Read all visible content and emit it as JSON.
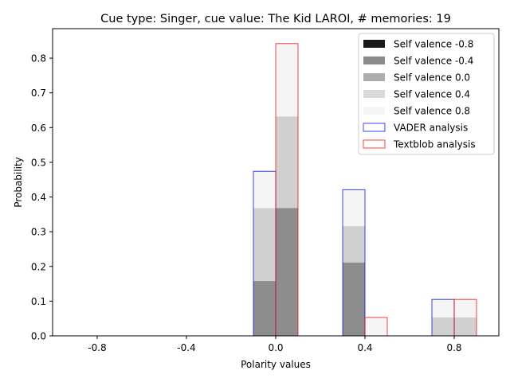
{
  "chart_data": {
    "type": "bar",
    "title": "Cue type: Singer, cue value: The Kid LAROI, # memories: 19",
    "xlabel": "Polarity values",
    "ylabel": "Probability",
    "x_ticks": [
      "-0.8",
      "-0.4",
      "0.0",
      "0.4",
      "0.8"
    ],
    "y_ticks": [
      "0.0",
      "0.1",
      "0.2",
      "0.3",
      "0.4",
      "0.5",
      "0.6",
      "0.7",
      "0.8"
    ],
    "xlim": [
      -1.0,
      1.0
    ],
    "ylim": [
      0,
      0.885
    ],
    "grid": false,
    "legend_position": "top-right",
    "self_valence_series": [
      {
        "name": "Self valence -0.8",
        "color": "#000000",
        "opacity": 0.9,
        "vader": [
          0,
          0,
          0,
          0,
          0
        ],
        "textblob": [
          0,
          0,
          0,
          0,
          0
        ]
      },
      {
        "name": "Self valence -0.4",
        "color": "#000000",
        "opacity": 0.45,
        "vader": [
          0,
          0,
          0,
          0,
          0
        ],
        "textblob": [
          0,
          0,
          0,
          0,
          0
        ]
      },
      {
        "name": "Self valence 0.0",
        "color": "#000000",
        "opacity": 0.32,
        "vader": [
          0,
          0,
          0.158,
          0.211,
          0
        ],
        "textblob": [
          0,
          0,
          0.368,
          0,
          0
        ]
      },
      {
        "name": "Self valence 0.4",
        "color": "#000000",
        "opacity": 0.15,
        "vader": [
          0,
          0,
          0.368,
          0.316,
          0.053
        ],
        "textblob": [
          0,
          0,
          0.632,
          0,
          0.053
        ]
      },
      {
        "name": "Self valence 0.8",
        "color": "#000000",
        "opacity": 0.04,
        "vader": [
          0,
          0,
          0.474,
          0.421,
          0.105
        ],
        "textblob": [
          0,
          0,
          0.842,
          0.053,
          0.105
        ]
      }
    ],
    "analysis_series": [
      {
        "name": "VADER analysis",
        "color": "#0000ff",
        "values": [
          0,
          0,
          0.474,
          0.421,
          0.105
        ]
      },
      {
        "name": "Textblob analysis",
        "color": "#ff0000",
        "values": [
          0,
          0,
          0.842,
          0.053,
          0.105
        ]
      }
    ]
  }
}
